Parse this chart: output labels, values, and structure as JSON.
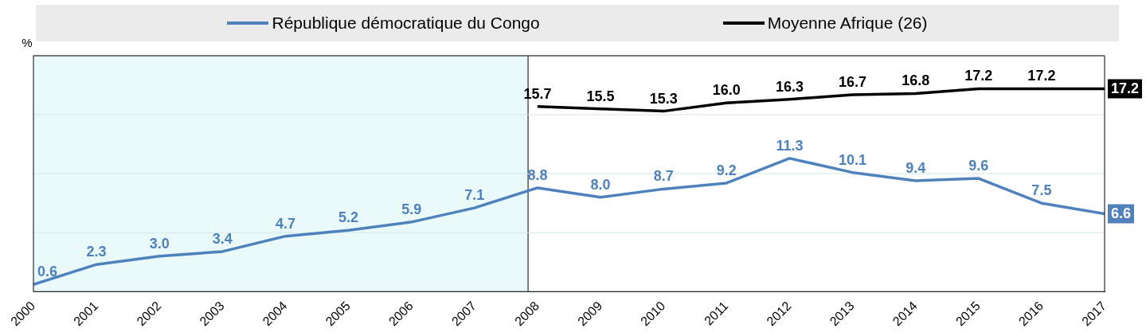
{
  "chart_data": {
    "type": "line",
    "ylabel": "%",
    "x": [
      2000,
      2001,
      2002,
      2003,
      2004,
      2005,
      2006,
      2007,
      2008,
      2009,
      2010,
      2011,
      2012,
      2013,
      2014,
      2015,
      2016,
      2017
    ],
    "xlim": [
      2000,
      2017
    ],
    "xticks": [
      2000,
      2001,
      2002,
      2003,
      2004,
      2005,
      2006,
      2007,
      2008,
      2009,
      2010,
      2011,
      2012,
      2013,
      2014,
      2015,
      2016,
      2017
    ],
    "ylim": [
      0,
      20
    ],
    "yticks": [
      {
        "value": 0,
        "label": null
      },
      {
        "value": 5,
        "label": null
      },
      {
        "value": 10,
        "label": null
      },
      {
        "value": 15,
        "label": null
      },
      {
        "value": 20,
        "label": null
      }
    ],
    "tick_labels": "x",
    "grid": "y",
    "legend": "top",
    "line_style": "solid",
    "bands": [
      {
        "axis": "x",
        "from": 2000,
        "to": 2007.85,
        "color": "#eafafb"
      }
    ],
    "ref_lines": [
      {
        "axis": "x",
        "value": 2007.85,
        "color": "#000000"
      }
    ],
    "series": [
      {
        "name": "République démocratique du Congo",
        "color": "#4f81bd",
        "values": [
          0.6,
          2.3,
          3.0,
          3.4,
          4.7,
          5.2,
          5.9,
          7.1,
          8.8,
          8.0,
          8.7,
          9.2,
          11.3,
          10.1,
          9.4,
          9.6,
          7.5,
          6.6
        ],
        "value_labels": [
          "0.6",
          "2.3",
          "3.0",
          "3.4",
          "4.7",
          "5.2",
          "5.9",
          "7.1",
          "8.8",
          "8.0",
          "8.7",
          "9.2",
          "11.3",
          "10.1",
          "9.4",
          "9.6",
          "7.5",
          "6.6"
        ]
      },
      {
        "name": "Moyenne Afrique (26)",
        "color": "#000000",
        "values": [
          null,
          null,
          null,
          null,
          null,
          null,
          null,
          null,
          15.7,
          15.5,
          15.3,
          16.0,
          16.3,
          16.7,
          16.8,
          17.2,
          17.2,
          17.2
        ],
        "value_labels": [
          null,
          null,
          null,
          null,
          null,
          null,
          null,
          null,
          "15.7",
          "15.5",
          "15.3",
          "16.0",
          "16.3",
          "16.7",
          "16.8",
          "17.2",
          "17.2",
          "17.2"
        ]
      }
    ]
  }
}
